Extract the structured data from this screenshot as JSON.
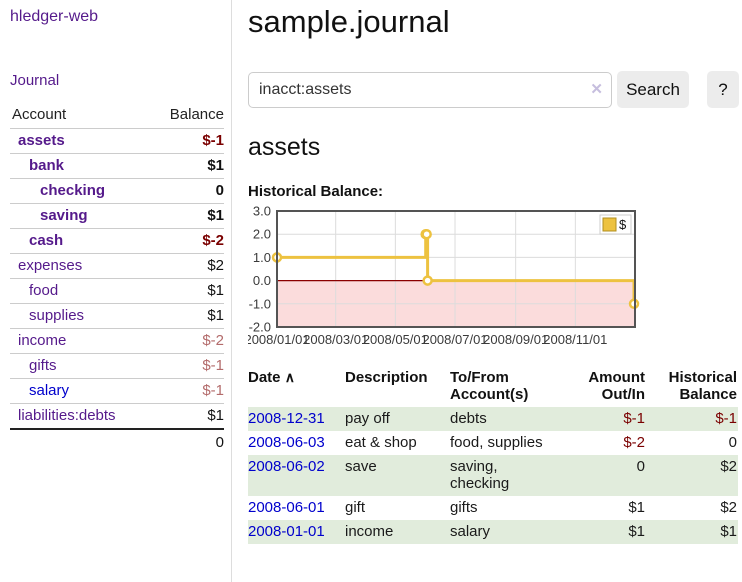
{
  "sidebar": {
    "brand": "hledger-web",
    "journal_link": "Journal",
    "accounts_table": {
      "headers": [
        "Account",
        "Balance"
      ],
      "rows": [
        {
          "name": "assets",
          "depth": 1,
          "bold": true,
          "balance": "$-1",
          "balance_style": "neg-strong"
        },
        {
          "name": "bank",
          "depth": 2,
          "bold": true,
          "balance": "$1",
          "balance_style": "pos"
        },
        {
          "name": "checking",
          "depth": 3,
          "bold": true,
          "balance": "0",
          "balance_style": "pos"
        },
        {
          "name": "saving",
          "depth": 3,
          "bold": true,
          "balance": "$1",
          "balance_style": "pos"
        },
        {
          "name": "cash",
          "depth": 2,
          "bold": true,
          "balance": "$-2",
          "balance_style": "neg-strong"
        },
        {
          "name": "expenses",
          "depth": 1,
          "bold": false,
          "balance": "$2",
          "balance_style": "pos"
        },
        {
          "name": "food",
          "depth": 2,
          "bold": false,
          "balance": "$1",
          "balance_style": "pos"
        },
        {
          "name": "supplies",
          "depth": 2,
          "bold": false,
          "balance": "$1",
          "balance_style": "pos"
        },
        {
          "name": "income",
          "depth": 1,
          "bold": false,
          "balance": "$-2",
          "balance_style": "neg-muted"
        },
        {
          "name": "gifts",
          "depth": 2,
          "bold": false,
          "balance": "$-1",
          "balance_style": "neg-muted"
        },
        {
          "name": "salary",
          "depth": 2,
          "bold": false,
          "balance": "$-1",
          "balance_style": "neg-muted",
          "link_color": "blue"
        },
        {
          "name": "liabilities:debts",
          "depth": 1,
          "bold": false,
          "balance": "$1",
          "balance_style": "pos"
        }
      ],
      "total": "0"
    }
  },
  "header": {
    "title": "sample.journal"
  },
  "search": {
    "value": "inacct:assets",
    "clear_icon": "✕",
    "button_label": "Search",
    "help_label": "?"
  },
  "account_view": {
    "heading": "assets",
    "chart_label": "Historical Balance:"
  },
  "chart_data": {
    "type": "line",
    "title": "Historical Balance",
    "step": true,
    "series": [
      {
        "name": "$",
        "color": "#edc240",
        "points": [
          [
            "2008-01-01",
            1
          ],
          [
            "2008-06-01",
            2
          ],
          [
            "2008-06-02",
            2
          ],
          [
            "2008-06-03",
            0
          ],
          [
            "2008-12-31",
            -1
          ]
        ]
      }
    ],
    "x_ticks": [
      "2008/01/01",
      "2008/03/01",
      "2008/05/01",
      "2008/07/01",
      "2008/09/01",
      "2008/11/01"
    ],
    "y_ticks": [
      3.0,
      2.0,
      1.0,
      0.0,
      -1.0,
      -2.0
    ],
    "xlim": [
      "2008-01-01",
      "2009-01-01"
    ],
    "ylim": [
      -2,
      3
    ],
    "grid": true,
    "grid_color": "#dcdcdc",
    "border_color": "#545454",
    "negative_region_color": "#fbdcdc",
    "zero_line_color": "#8b0000",
    "marker": {
      "shape": "circle",
      "fill": "#ffffff"
    },
    "legend": {
      "label": "$",
      "position": "top-right"
    }
  },
  "transactions": {
    "columns": [
      {
        "label": "Date",
        "sort_icon": "∧"
      },
      {
        "label": "Description"
      },
      {
        "label": "To/From\nAccount(s)"
      },
      {
        "label": "Amount\nOut/In",
        "align": "right"
      },
      {
        "label": "Historical\nBalance",
        "align": "right"
      }
    ],
    "rows": [
      {
        "date": "2008-12-31",
        "description": "pay off",
        "accounts": "debts",
        "amount": "$-1",
        "amount_negative": true,
        "balance": "$-1",
        "balance_negative": true
      },
      {
        "date": "2008-06-03",
        "description": "eat & shop",
        "accounts": "food, supplies",
        "amount": "$-2",
        "amount_negative": true,
        "balance": "0",
        "balance_negative": false
      },
      {
        "date": "2008-06-02",
        "description": "save",
        "accounts": "saving,\nchecking",
        "amount": "0",
        "amount_negative": false,
        "balance": "$2",
        "balance_negative": false
      },
      {
        "date": "2008-06-01",
        "description": "gift",
        "accounts": "gifts",
        "amount": "$1",
        "amount_negative": false,
        "balance": "$2",
        "balance_negative": false
      },
      {
        "date": "2008-01-01",
        "description": "income",
        "accounts": "salary",
        "amount": "$1",
        "amount_negative": false,
        "balance": "$1",
        "balance_negative": false
      }
    ]
  },
  "colors": {
    "link_purple": "#551a8b",
    "link_blue": "#0000cc",
    "negative_strong": "#7a0000",
    "negative_muted": "#b36b6b",
    "row_stripe_green": "#e1ecdc",
    "chart_line_gold": "#edc240",
    "button_gray": "#ececec",
    "sidebar_divider": "#dddddd"
  }
}
